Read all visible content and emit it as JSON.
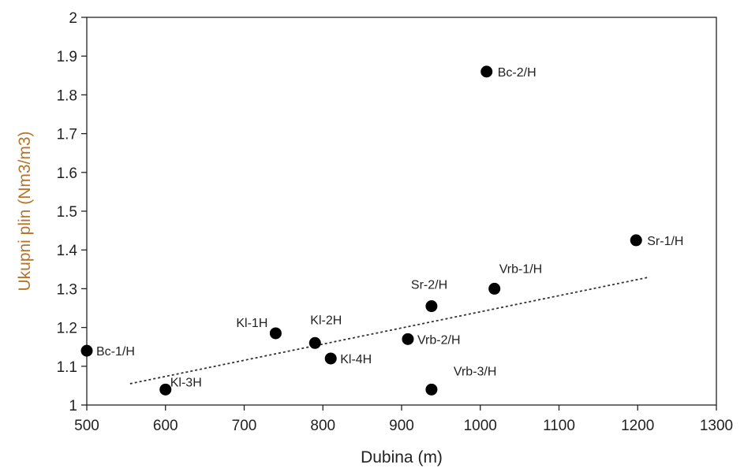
{
  "chart_data": {
    "type": "scatter",
    "title": "",
    "xlabel": "Dubina (m)",
    "ylabel": "Ukupni plin (Nm3/m3)",
    "xlim": [
      500,
      1300
    ],
    "ylim": [
      1,
      2
    ],
    "xticks": [
      "500",
      "600",
      "700",
      "800",
      "900",
      "1000",
      "1100",
      "1200",
      "1300"
    ],
    "yticks": [
      "1",
      "1.1",
      "1.2",
      "1.3",
      "1.4",
      "1.5",
      "1.6",
      "1.7",
      "1.8",
      "1.9",
      "2"
    ],
    "grid": false,
    "colors": {
      "points": "#000000",
      "ylabel": "#b5742a",
      "axes": "#222222",
      "trend": "#333333"
    },
    "points": [
      {
        "label": "Bc-1/H",
        "x": 500,
        "y": 1.14
      },
      {
        "label": "Kl-3H",
        "x": 600,
        "y": 1.04
      },
      {
        "label": "Kl-1H",
        "x": 740,
        "y": 1.185
      },
      {
        "label": "Kl-2H",
        "x": 790,
        "y": 1.16
      },
      {
        "label": "Kl-4H",
        "x": 810,
        "y": 1.12
      },
      {
        "label": "Vrb-2/H",
        "x": 908,
        "y": 1.17
      },
      {
        "label": "Sr-2/H",
        "x": 938,
        "y": 1.255
      },
      {
        "label": "Vrb-3/H",
        "x": 938,
        "y": 1.04
      },
      {
        "label": "Bc-2/H",
        "x": 1008,
        "y": 1.86
      },
      {
        "label": "Vrb-1/H",
        "x": 1018,
        "y": 1.3
      },
      {
        "label": "Sr-1/H",
        "x": 1198,
        "y": 1.425
      }
    ],
    "trendline": {
      "style": "dotted",
      "x": [
        555,
        1215
      ],
      "y": [
        1.055,
        1.33
      ]
    }
  }
}
